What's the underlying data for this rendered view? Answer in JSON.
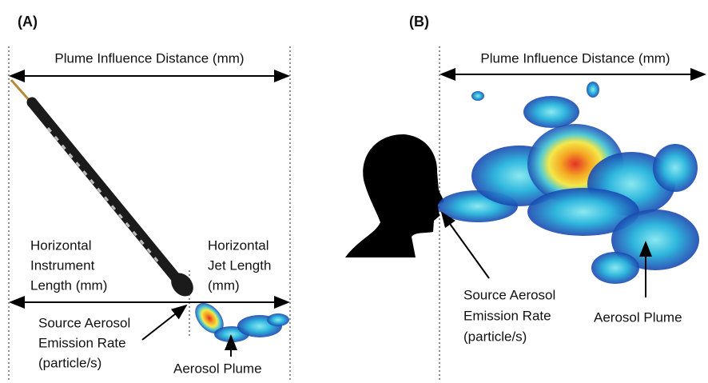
{
  "panels": [
    {
      "label": "(A)",
      "distance_label": "Plume Influence Distance (mm)",
      "instrument_length_label": [
        "Horizontal",
        "Instrument",
        "Length (mm)"
      ],
      "jet_length_label": [
        "Horizontal",
        "Jet Length",
        "(mm)"
      ],
      "source_label": [
        "Source Aerosol",
        "Emission Rate",
        "(particle/s)"
      ],
      "plume_label": "Aerosol Plume"
    },
    {
      "label": "(B)",
      "distance_label": "Plume Influence Distance (mm)",
      "source_label": [
        "Source Aerosol",
        "Emission Rate",
        "(particle/s)"
      ],
      "plume_label": "Aerosol Plume"
    }
  ]
}
